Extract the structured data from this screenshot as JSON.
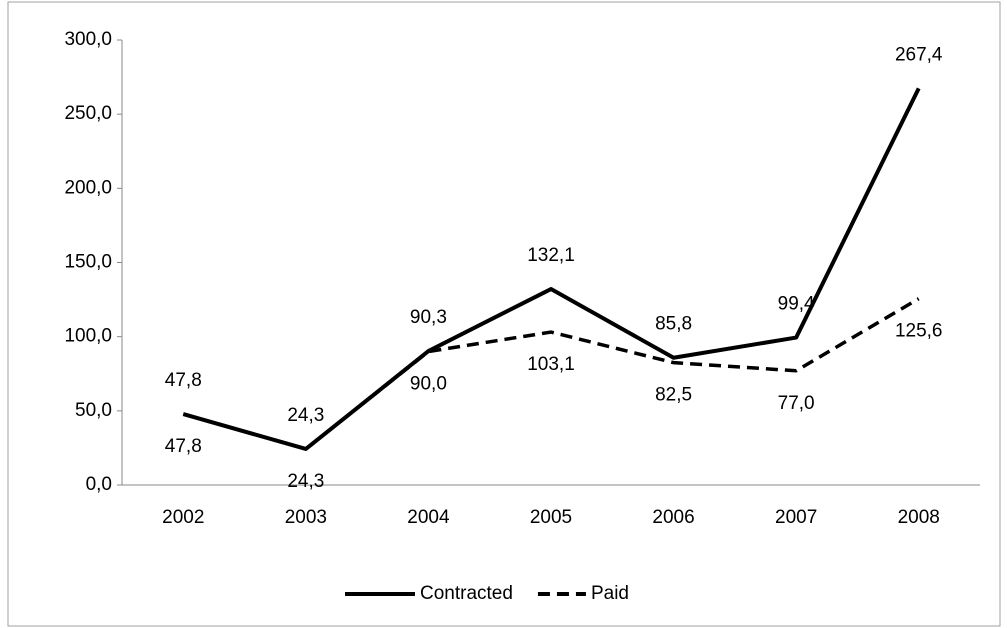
{
  "chart_data": {
    "type": "line",
    "categories": [
      "2002",
      "2003",
      "2004",
      "2005",
      "2006",
      "2007",
      "2008"
    ],
    "series": [
      {
        "name": "Contracted",
        "color": "#000000",
        "dash": "solid",
        "values": [
          47.8,
          24.3,
          90.3,
          132.1,
          85.8,
          99.4,
          267.4
        ],
        "value_labels": [
          "47,8",
          "24,3",
          "90,3",
          "132,1",
          "85,8",
          "99,4",
          "267,4"
        ]
      },
      {
        "name": "Paid",
        "color": "#000000",
        "dash": "dashed",
        "values": [
          47.8,
          24.3,
          90.0,
          103.1,
          82.5,
          77.0,
          125.6
        ],
        "value_labels": [
          "47,8",
          "24,3",
          "90,0",
          "103,1",
          "82,5",
          "77,0",
          "125,6"
        ]
      }
    ],
    "ylim": [
      0,
      300
    ],
    "yticks": [
      {
        "value": 0,
        "label": "0,0"
      },
      {
        "value": 50,
        "label": "50,0"
      },
      {
        "value": 100,
        "label": "100,0"
      },
      {
        "value": 150,
        "label": "150,0"
      },
      {
        "value": 200,
        "label": "200,0"
      },
      {
        "value": 250,
        "label": "250,0"
      },
      {
        "value": 300,
        "label": "300,0"
      }
    ],
    "grid": false,
    "legend": "bottom"
  }
}
